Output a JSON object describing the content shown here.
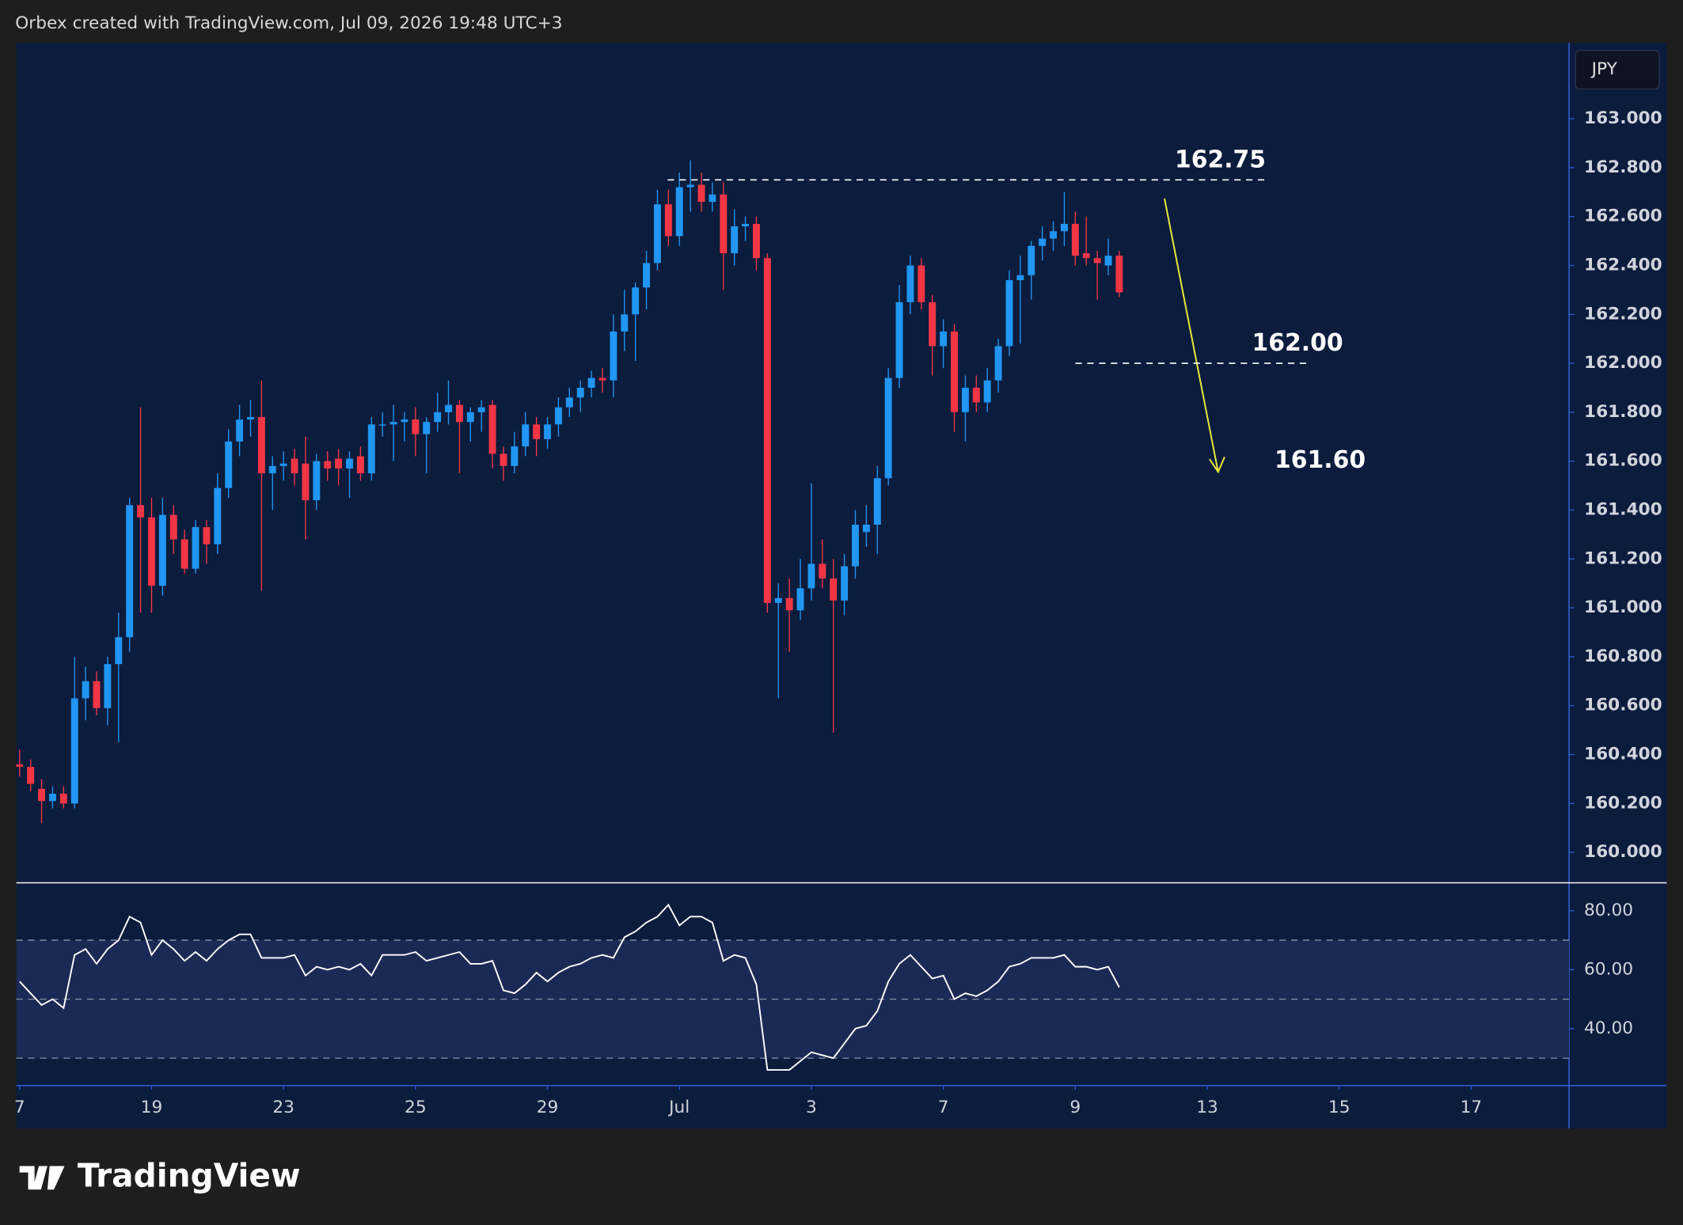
{
  "header": "Orbex created with TradingView.com, Jul 09, 2026 19:48 UTC+3",
  "currency": "JPY",
  "brand": "TradingView",
  "chart_data": [
    {
      "type": "candlestick",
      "open": [
        160.36,
        160.35,
        160.26,
        160.21,
        160.24,
        160.2,
        160.63,
        160.7,
        160.59,
        160.77,
        160.88,
        161.42,
        161.37,
        161.09,
        161.38,
        161.28,
        161.16,
        161.33,
        161.26,
        161.49,
        161.68,
        161.77,
        161.78,
        161.55,
        161.58,
        161.61,
        161.59,
        161.44,
        161.6,
        161.61,
        161.57,
        161.62,
        161.55,
        161.75,
        161.75,
        161.76,
        161.77,
        161.71,
        161.76,
        161.8,
        161.83,
        161.76,
        161.8,
        161.83,
        161.63,
        161.58,
        161.66,
        161.75,
        161.69,
        161.75,
        161.82,
        161.86,
        161.9,
        161.94,
        161.93,
        162.13,
        162.2,
        162.31,
        162.41,
        162.65,
        162.52,
        162.72,
        162.73,
        162.66,
        162.69,
        162.45,
        162.56,
        162.57,
        162.43,
        161.02,
        161.04,
        160.99,
        161.08,
        161.18,
        161.12,
        161.03,
        161.17,
        161.31,
        161.34,
        161.53,
        161.94,
        162.25,
        162.4,
        162.25,
        162.07,
        162.13,
        161.8,
        161.9,
        161.84,
        161.93,
        162.07,
        162.34,
        162.36,
        162.48,
        162.51,
        162.54,
        162.57,
        162.45,
        162.43,
        162.4,
        162.44
      ],
      "high": [
        160.42,
        160.38,
        160.3,
        160.27,
        160.27,
        160.8,
        160.76,
        160.74,
        160.8,
        160.98,
        161.45,
        161.82,
        161.45,
        161.45,
        161.42,
        161.32,
        161.36,
        161.36,
        161.55,
        161.73,
        161.83,
        161.85,
        161.93,
        161.62,
        161.64,
        161.65,
        161.7,
        161.63,
        161.64,
        161.65,
        161.64,
        161.66,
        161.78,
        161.8,
        161.83,
        161.8,
        161.82,
        161.78,
        161.88,
        161.93,
        161.85,
        161.82,
        161.85,
        161.85,
        161.66,
        161.72,
        161.8,
        161.78,
        161.78,
        161.86,
        161.9,
        161.93,
        161.97,
        161.98,
        162.2,
        162.3,
        162.33,
        162.46,
        162.71,
        162.71,
        162.78,
        162.83,
        162.78,
        162.74,
        162.74,
        162.63,
        162.6,
        162.6,
        162.45,
        161.1,
        161.12,
        161.2,
        161.51,
        161.28,
        161.2,
        161.22,
        161.4,
        161.42,
        161.58,
        161.98,
        162.32,
        162.44,
        162.43,
        162.28,
        162.18,
        162.16,
        161.95,
        161.95,
        161.98,
        162.1,
        162.38,
        162.44,
        162.5,
        162.56,
        162.58,
        162.7,
        162.62,
        162.6,
        162.46,
        162.51,
        162.46
      ],
      "low": [
        160.31,
        160.25,
        160.12,
        160.18,
        160.18,
        160.18,
        160.54,
        160.56,
        160.52,
        160.45,
        160.82,
        160.98,
        160.98,
        161.05,
        161.22,
        161.14,
        161.14,
        161.18,
        161.22,
        161.45,
        161.62,
        161.7,
        161.07,
        161.4,
        161.52,
        161.5,
        161.28,
        161.4,
        161.52,
        161.5,
        161.45,
        161.52,
        161.52,
        161.7,
        161.6,
        161.68,
        161.62,
        161.55,
        161.72,
        161.75,
        161.55,
        161.68,
        161.72,
        161.57,
        161.52,
        161.55,
        161.62,
        161.62,
        161.65,
        161.7,
        161.78,
        161.8,
        161.86,
        161.88,
        161.86,
        162.05,
        162.01,
        162.22,
        162.38,
        162.48,
        162.48,
        162.62,
        162.62,
        162.62,
        162.3,
        162.4,
        162.5,
        162.38,
        160.98,
        160.63,
        160.82,
        160.95,
        161.03,
        161.08,
        160.49,
        160.97,
        161.12,
        161.25,
        161.22,
        161.5,
        161.9,
        162.2,
        162.22,
        161.95,
        161.98,
        161.72,
        161.68,
        161.8,
        161.8,
        161.88,
        162.03,
        162.08,
        162.26,
        162.42,
        162.46,
        162.48,
        162.4,
        162.4,
        162.26,
        162.36,
        162.27
      ],
      "close": [
        160.35,
        160.28,
        160.21,
        160.24,
        160.2,
        160.63,
        160.7,
        160.59,
        160.77,
        160.88,
        161.42,
        161.37,
        161.09,
        161.38,
        161.28,
        161.16,
        161.33,
        161.26,
        161.49,
        161.68,
        161.77,
        161.78,
        161.55,
        161.58,
        161.59,
        161.55,
        161.44,
        161.6,
        161.57,
        161.57,
        161.61,
        161.55,
        161.75,
        161.75,
        161.76,
        161.77,
        161.71,
        161.76,
        161.8,
        161.83,
        161.76,
        161.8,
        161.82,
        161.63,
        161.58,
        161.66,
        161.75,
        161.69,
        161.75,
        161.82,
        161.86,
        161.9,
        161.94,
        161.93,
        162.13,
        162.2,
        162.31,
        162.41,
        162.65,
        162.52,
        162.72,
        162.73,
        162.66,
        162.69,
        162.45,
        162.56,
        162.57,
        162.43,
        161.02,
        161.04,
        160.99,
        161.08,
        161.18,
        161.12,
        161.03,
        161.17,
        161.34,
        161.34,
        161.53,
        161.94,
        162.25,
        162.4,
        162.25,
        162.07,
        162.13,
        161.8,
        161.9,
        161.84,
        161.93,
        162.07,
        162.34,
        162.36,
        162.48,
        162.51,
        162.54,
        162.57,
        162.44,
        162.43,
        162.41,
        162.44,
        162.29
      ],
      "up_color": "#2196f3",
      "down_color": "#f23645",
      "ylim": [
        159.88,
        163.31
      ],
      "yticks": [
        {
          "value": 160,
          "label": "160.000"
        },
        {
          "value": 160.2,
          "label": "160.200"
        },
        {
          "value": 160.4,
          "label": "160.400"
        },
        {
          "value": 160.6,
          "label": "160.600"
        },
        {
          "value": 160.8,
          "label": "160.800"
        },
        {
          "value": 161,
          "label": "161.000"
        },
        {
          "value": 161.2,
          "label": "161.200"
        },
        {
          "value": 161.4,
          "label": "161.400"
        },
        {
          "value": 161.6,
          "label": "161.600"
        },
        {
          "value": 161.8,
          "label": "161.800"
        },
        {
          "value": 162,
          "label": "162.000"
        },
        {
          "value": 162.2,
          "label": "162.200"
        },
        {
          "value": 162.4,
          "label": "162.400"
        },
        {
          "value": 162.6,
          "label": "162.600"
        },
        {
          "value": 162.8,
          "label": "162.800"
        },
        {
          "value": 163,
          "label": "163.000"
        }
      ],
      "xlim": [
        -0.3,
        140.9
      ],
      "xticks": [
        {
          "value": 0,
          "label": "7"
        },
        {
          "value": 12,
          "label": "19"
        },
        {
          "value": 24,
          "label": "23"
        },
        {
          "value": 36,
          "label": "25"
        },
        {
          "value": 48,
          "label": "29"
        },
        {
          "value": 60,
          "label": "Jul"
        },
        {
          "value": 72,
          "label": "3"
        },
        {
          "value": 84,
          "label": "7"
        },
        {
          "value": 96,
          "label": "9"
        },
        {
          "value": 108,
          "label": "13"
        },
        {
          "value": 120,
          "label": "15"
        },
        {
          "value": 132,
          "label": "17"
        }
      ],
      "levels": [
        {
          "value": 162.75,
          "label": "162.75"
        },
        {
          "value": 162,
          "label": "162.00"
        },
        {
          "value": 161.6,
          "label": "161.60"
        }
      ]
    },
    {
      "type": "line",
      "values": [
        56,
        52,
        48,
        50,
        47,
        65,
        67,
        62,
        67,
        70,
        78,
        76,
        65,
        70,
        67,
        63,
        66,
        63,
        67,
        70,
        72,
        72,
        64,
        64,
        64,
        65,
        58,
        61,
        60,
        61,
        60,
        62,
        58,
        65,
        65,
        65,
        66,
        63,
        64,
        65,
        66,
        62,
        62,
        63,
        53,
        52,
        55,
        59,
        56,
        59,
        61,
        62,
        64,
        65,
        64,
        71,
        73,
        76,
        78,
        82,
        75,
        78,
        78,
        76,
        63,
        65,
        64,
        55,
        26,
        26,
        26,
        29,
        32,
        31,
        30,
        35,
        40,
        41,
        46,
        56,
        62,
        65,
        61,
        57,
        58,
        50,
        52,
        51,
        53,
        56,
        61,
        62,
        64,
        64,
        64,
        65,
        61,
        61,
        60,
        61,
        54
      ],
      "color": "#ffffff",
      "ylim": [
        20.7,
        89.1
      ],
      "yticks": [
        {
          "value": 40,
          "label": "40.00"
        },
        {
          "value": 60,
          "label": "60.00"
        },
        {
          "value": 80,
          "label": "80.00"
        }
      ],
      "bands": [
        30,
        50,
        70
      ]
    }
  ]
}
